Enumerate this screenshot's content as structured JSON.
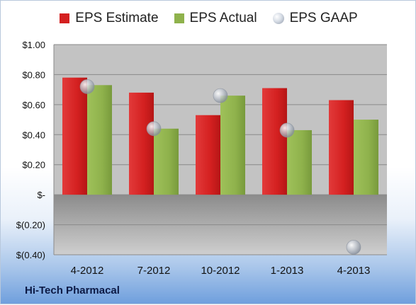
{
  "chart_data": {
    "type": "bar",
    "categories": [
      "4-2012",
      "7-2012",
      "10-2012",
      "1-2013",
      "4-2013"
    ],
    "series": [
      {
        "name": "EPS Estimate",
        "values": [
          0.78,
          0.68,
          0.53,
          0.71,
          0.63
        ],
        "color": "#d42020",
        "kind": "bar"
      },
      {
        "name": "EPS Actual",
        "values": [
          0.73,
          0.44,
          0.66,
          0.43,
          0.5
        ],
        "color": "#8fb24c",
        "kind": "bar"
      },
      {
        "name": "EPS GAAP",
        "values": [
          0.72,
          0.44,
          0.66,
          0.43,
          -0.35
        ],
        "color": "#c0c6cf",
        "kind": "marker"
      }
    ],
    "yticks": [
      1.0,
      0.8,
      0.6,
      0.4,
      0.2,
      0.0,
      -0.2,
      -0.4
    ],
    "ytick_labels": [
      "$1.00",
      "$0.80",
      "$0.60",
      "$0.40",
      "$0.20",
      "$-",
      "$(0.20)",
      "$(0.40)"
    ],
    "ylim": [
      -0.4,
      1.0
    ],
    "legend_position": "top",
    "grid": true
  },
  "footer": {
    "company": "Hi-Tech Pharmacal"
  }
}
